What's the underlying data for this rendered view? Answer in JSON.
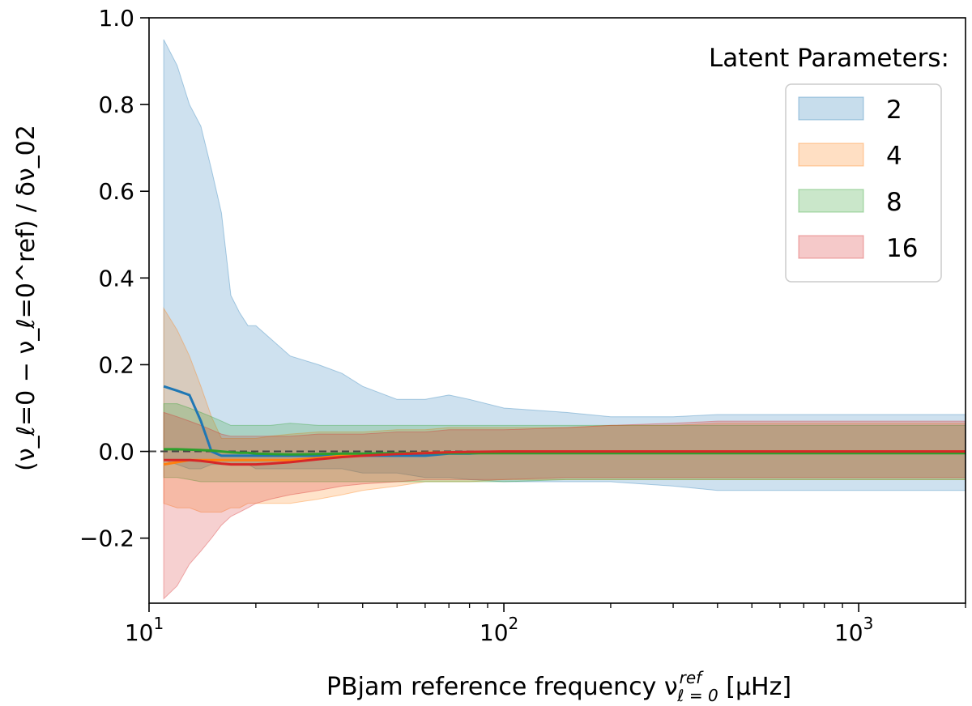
{
  "chart_data": {
    "type": "area",
    "title": "",
    "xlabel": "PBjam reference frequency ν",
    "xlabel_sup": "ref",
    "xlabel_sub": "ℓ = 0",
    "xlabel_unit": " [μHz]",
    "ylabel": "(ν_ℓ=0 − ν_ℓ=0^ref) / δν_02",
    "x_scale": "log",
    "xlim": [
      10,
      2000
    ],
    "ylim": [
      -0.35,
      1.0
    ],
    "x_ticks": [
      {
        "value": 10,
        "label": "10",
        "exp": "1"
      },
      {
        "value": 100,
        "label": "10",
        "exp": "2"
      },
      {
        "value": 1000,
        "label": "10",
        "exp": "3"
      }
    ],
    "y_ticks": [
      -0.2,
      0.0,
      0.2,
      0.4,
      0.6,
      0.8,
      1.0
    ],
    "y_tick_labels": [
      "−0.2",
      "0.0",
      "0.2",
      "0.4",
      "0.6",
      "0.8",
      "1.0"
    ],
    "reference_line": {
      "y": 0.0,
      "style": "dashed",
      "color": "#444444"
    },
    "legend": {
      "title": "Latent Parameters:",
      "position": "top-right"
    },
    "grid": false,
    "series": [
      {
        "name": "2",
        "color": "#1f77b4",
        "band_opacity": 0.22,
        "x": [
          11,
          12,
          13,
          14,
          15,
          16,
          17,
          18,
          19,
          20,
          22,
          25,
          30,
          35,
          40,
          50,
          60,
          70,
          80,
          100,
          150,
          200,
          300,
          400,
          600,
          1000,
          1500,
          2000
        ],
        "upper": [
          0.95,
          0.89,
          0.8,
          0.75,
          0.65,
          0.55,
          0.36,
          0.32,
          0.29,
          0.29,
          0.26,
          0.22,
          0.2,
          0.18,
          0.15,
          0.12,
          0.12,
          0.13,
          0.12,
          0.1,
          0.09,
          0.08,
          0.08,
          0.085,
          0.085,
          0.085,
          0.085,
          0.085
        ],
        "lower": [
          -0.02,
          -0.03,
          -0.04,
          -0.04,
          -0.03,
          -0.03,
          -0.03,
          -0.03,
          -0.03,
          -0.04,
          -0.04,
          -0.04,
          -0.04,
          -0.04,
          -0.05,
          -0.05,
          -0.06,
          -0.06,
          -0.065,
          -0.07,
          -0.07,
          -0.07,
          -0.08,
          -0.09,
          -0.09,
          -0.09,
          -0.09,
          -0.09
        ],
        "mean": [
          0.15,
          0.14,
          0.13,
          0.07,
          0.0,
          -0.01,
          -0.01,
          -0.01,
          -0.01,
          -0.01,
          -0.01,
          -0.01,
          -0.01,
          -0.01,
          -0.01,
          -0.01,
          -0.01,
          -0.005,
          -0.005,
          0.0,
          0.0,
          0.0,
          0.0,
          0.0,
          0.0,
          0.0,
          0.0,
          0.0
        ]
      },
      {
        "name": "4",
        "color": "#ff7f0e",
        "band_opacity": 0.22,
        "x": [
          11,
          12,
          13,
          14,
          15,
          16,
          17,
          18,
          19,
          20,
          22,
          25,
          30,
          35,
          40,
          50,
          60,
          70,
          80,
          100,
          150,
          200,
          300,
          400,
          600,
          1000,
          1500,
          2000
        ],
        "upper": [
          0.33,
          0.28,
          0.22,
          0.15,
          0.08,
          0.03,
          0.03,
          0.03,
          0.03,
          0.03,
          0.035,
          0.04,
          0.045,
          0.045,
          0.045,
          0.05,
          0.05,
          0.055,
          0.055,
          0.055,
          0.055,
          0.06,
          0.06,
          0.065,
          0.065,
          0.065,
          0.065,
          0.065
        ],
        "lower": [
          -0.12,
          -0.13,
          -0.13,
          -0.14,
          -0.14,
          -0.14,
          -0.13,
          -0.13,
          -0.12,
          -0.12,
          -0.12,
          -0.12,
          -0.11,
          -0.1,
          -0.09,
          -0.08,
          -0.07,
          -0.07,
          -0.07,
          -0.065,
          -0.065,
          -0.065,
          -0.065,
          -0.065,
          -0.065,
          -0.065,
          -0.065,
          -0.065
        ],
        "mean": [
          -0.03,
          -0.025,
          -0.02,
          -0.02,
          -0.02,
          -0.02,
          -0.02,
          -0.02,
          -0.02,
          -0.02,
          -0.02,
          -0.02,
          -0.015,
          -0.01,
          -0.008,
          -0.005,
          -0.003,
          -0.002,
          -0.002,
          0.0,
          0.0,
          0.0,
          0.0,
          0.0,
          0.0,
          0.0,
          0.0,
          0.0
        ]
      },
      {
        "name": "8",
        "color": "#2ca02c",
        "band_opacity": 0.22,
        "x": [
          11,
          12,
          13,
          14,
          15,
          16,
          17,
          18,
          19,
          20,
          22,
          25,
          30,
          35,
          40,
          50,
          60,
          70,
          80,
          100,
          150,
          200,
          300,
          400,
          600,
          1000,
          1500,
          2000
        ],
        "upper": [
          0.11,
          0.11,
          0.1,
          0.09,
          0.08,
          0.07,
          0.06,
          0.06,
          0.06,
          0.06,
          0.06,
          0.065,
          0.06,
          0.06,
          0.06,
          0.06,
          0.06,
          0.06,
          0.06,
          0.06,
          0.06,
          0.06,
          0.06,
          0.06,
          0.06,
          0.06,
          0.06,
          0.06
        ],
        "lower": [
          -0.06,
          -0.06,
          -0.065,
          -0.07,
          -0.07,
          -0.07,
          -0.07,
          -0.07,
          -0.07,
          -0.07,
          -0.07,
          -0.07,
          -0.07,
          -0.07,
          -0.07,
          -0.07,
          -0.07,
          -0.07,
          -0.07,
          -0.07,
          -0.065,
          -0.065,
          -0.065,
          -0.065,
          -0.065,
          -0.065,
          -0.065,
          -0.065
        ],
        "mean": [
          0.005,
          0.005,
          0.004,
          0.003,
          0.002,
          0.0,
          -0.002,
          -0.003,
          -0.003,
          -0.005,
          -0.006,
          -0.007,
          -0.006,
          -0.005,
          -0.005,
          -0.004,
          -0.004,
          -0.004,
          -0.004,
          -0.004,
          -0.004,
          -0.004,
          -0.004,
          -0.004,
          -0.004,
          -0.004,
          -0.004,
          -0.004
        ]
      },
      {
        "name": "16",
        "color": "#d62728",
        "band_opacity": 0.22,
        "x": [
          11,
          12,
          13,
          14,
          15,
          16,
          17,
          18,
          19,
          20,
          22,
          25,
          30,
          35,
          40,
          50,
          60,
          70,
          80,
          100,
          150,
          200,
          300,
          400,
          600,
          1000,
          1500,
          2000
        ],
        "upper": [
          0.09,
          0.08,
          0.07,
          0.06,
          0.05,
          0.04,
          0.035,
          0.035,
          0.035,
          0.035,
          0.035,
          0.035,
          0.04,
          0.04,
          0.04,
          0.045,
          0.045,
          0.05,
          0.05,
          0.05,
          0.055,
          0.06,
          0.065,
          0.07,
          0.07,
          0.07,
          0.07,
          0.07
        ],
        "lower": [
          -0.34,
          -0.31,
          -0.26,
          -0.23,
          -0.2,
          -0.17,
          -0.15,
          -0.14,
          -0.13,
          -0.12,
          -0.11,
          -0.1,
          -0.09,
          -0.08,
          -0.075,
          -0.07,
          -0.065,
          -0.065,
          -0.065,
          -0.065,
          -0.06,
          -0.06,
          -0.06,
          -0.06,
          -0.06,
          -0.06,
          -0.06,
          -0.06
        ],
        "mean": [
          -0.02,
          -0.02,
          -0.02,
          -0.022,
          -0.025,
          -0.028,
          -0.03,
          -0.03,
          -0.03,
          -0.03,
          -0.028,
          -0.025,
          -0.018,
          -0.013,
          -0.01,
          -0.006,
          -0.004,
          -0.002,
          -0.001,
          0.0,
          0.0,
          0.0,
          0.0,
          0.0,
          0.0,
          0.0,
          0.0,
          0.0
        ]
      }
    ]
  }
}
